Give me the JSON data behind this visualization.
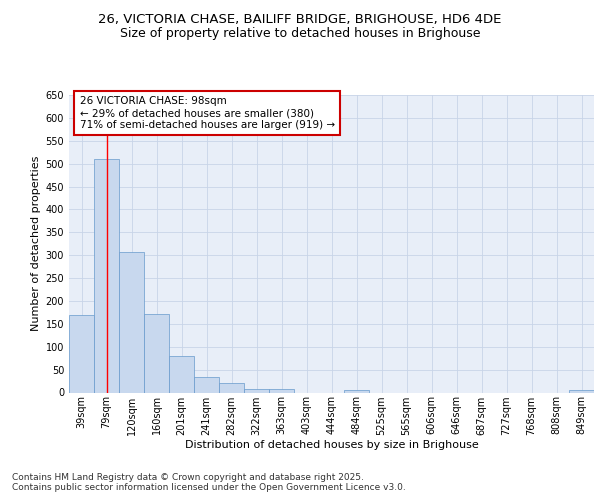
{
  "title_line1": "26, VICTORIA CHASE, BAILIFF BRIDGE, BRIGHOUSE, HD6 4DE",
  "title_line2": "Size of property relative to detached houses in Brighouse",
  "xlabel": "Distribution of detached houses by size in Brighouse",
  "ylabel": "Number of detached properties",
  "categories": [
    "39sqm",
    "79sqm",
    "120sqm",
    "160sqm",
    "201sqm",
    "241sqm",
    "282sqm",
    "322sqm",
    "363sqm",
    "403sqm",
    "444sqm",
    "484sqm",
    "525sqm",
    "565sqm",
    "606sqm",
    "646sqm",
    "687sqm",
    "727sqm",
    "768sqm",
    "808sqm",
    "849sqm"
  ],
  "values": [
    170,
    510,
    308,
    172,
    80,
    33,
    20,
    7,
    7,
    0,
    0,
    6,
    0,
    0,
    0,
    0,
    0,
    0,
    0,
    0,
    6
  ],
  "bar_color": "#c8d8ee",
  "bar_edge_color": "#6699cc",
  "bar_edge_width": 0.5,
  "red_line_x": 1,
  "annotation_line1": "26 VICTORIA CHASE: 98sqm",
  "annotation_line2": "← 29% of detached houses are smaller (380)",
  "annotation_line3": "71% of semi-detached houses are larger (919) →",
  "annotation_box_color": "#ffffff",
  "annotation_box_edge": "#cc0000",
  "ylim": [
    0,
    650
  ],
  "yticks": [
    0,
    50,
    100,
    150,
    200,
    250,
    300,
    350,
    400,
    450,
    500,
    550,
    600,
    650
  ],
  "grid_color": "#c8d4e8",
  "background_color": "#e8eef8",
  "footer_text": "Contains HM Land Registry data © Crown copyright and database right 2025.\nContains public sector information licensed under the Open Government Licence v3.0.",
  "title_fontsize": 9.5,
  "subtitle_fontsize": 9,
  "axis_label_fontsize": 8,
  "tick_fontsize": 7,
  "annotation_fontsize": 7.5,
  "footer_fontsize": 6.5
}
